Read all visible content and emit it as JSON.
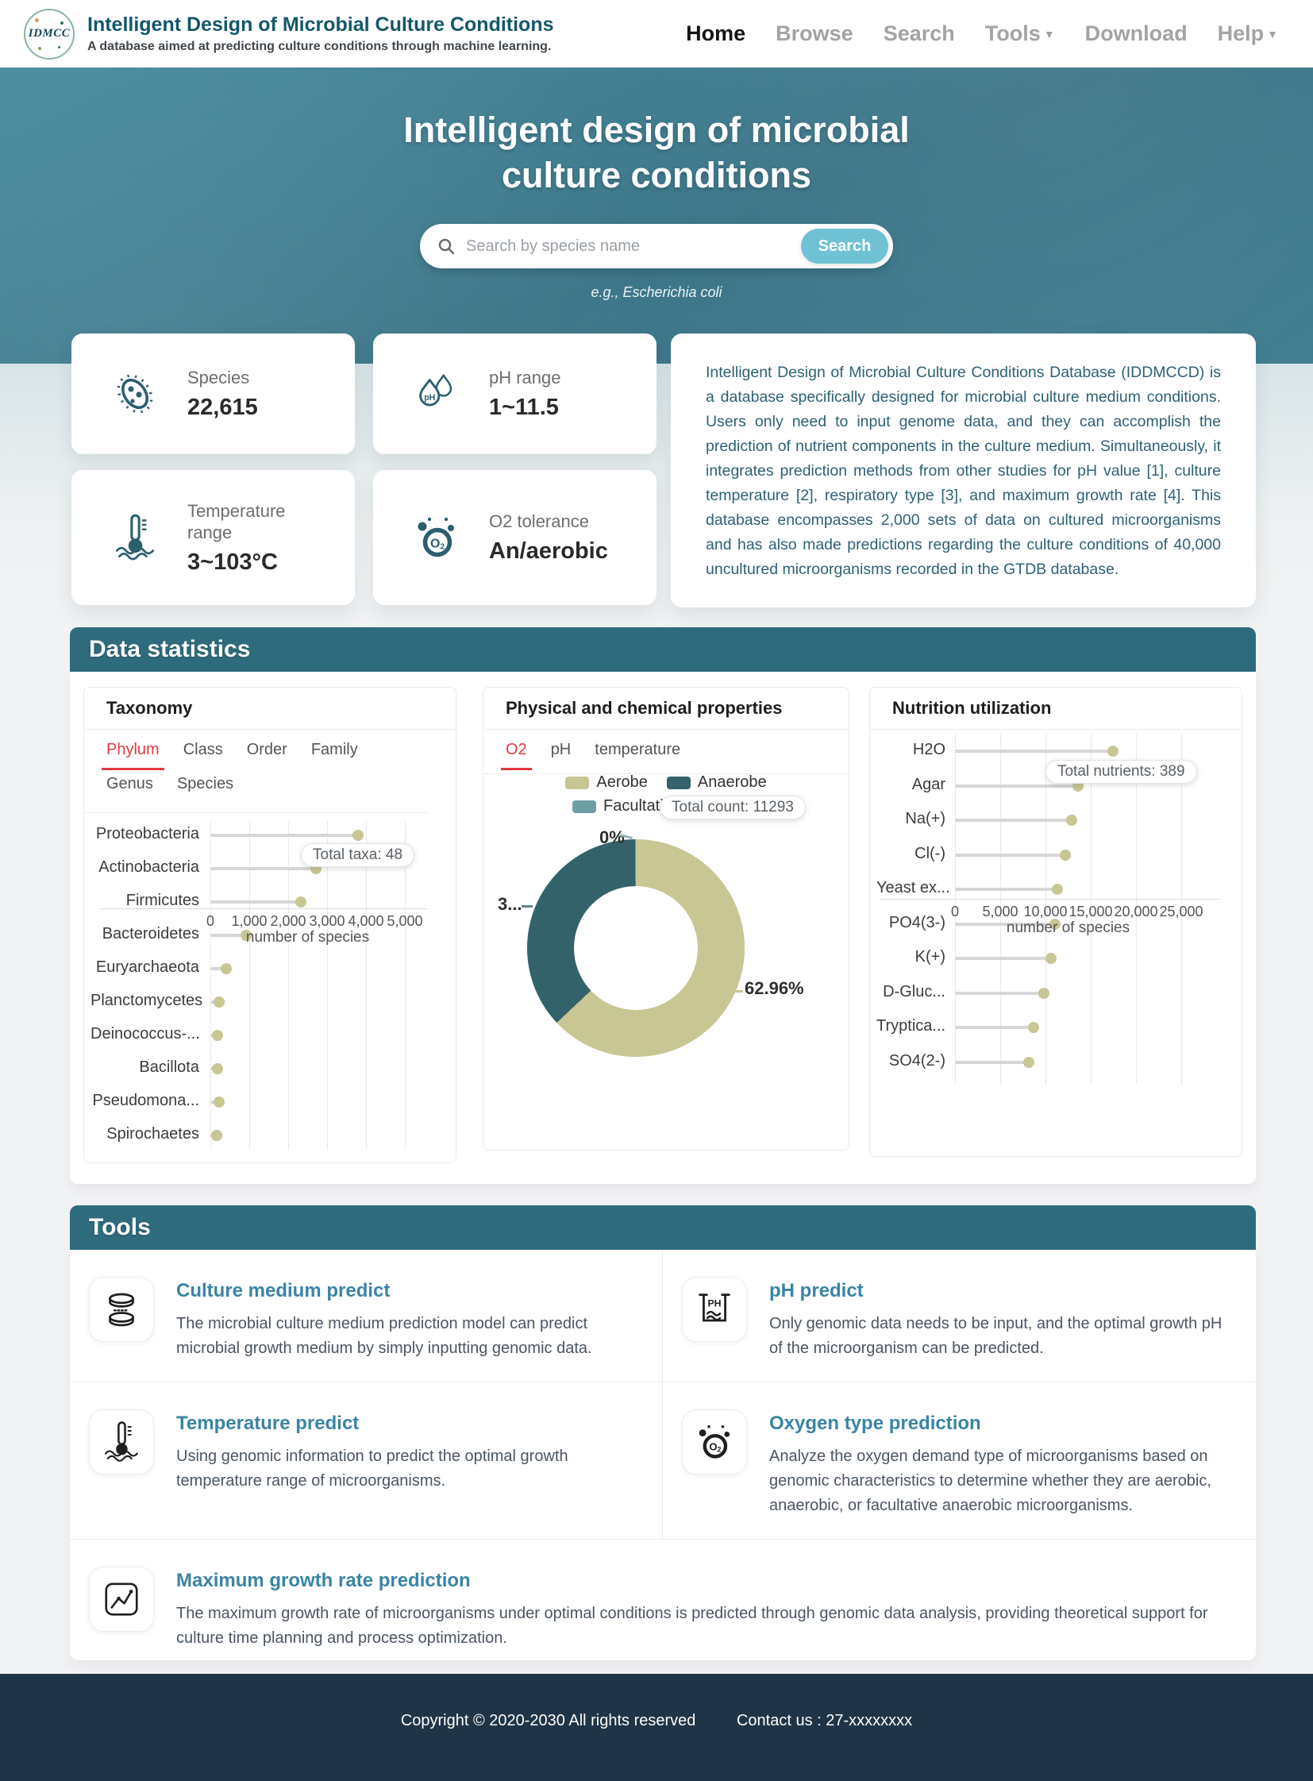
{
  "header": {
    "logo_text": "IDMCC",
    "title": "Intelligent Design of Microbial Culture Conditions",
    "subtitle": "A database aimed at predicting culture conditions through machine learning.",
    "nav": [
      {
        "label": "Home",
        "active": true,
        "dropdown": false
      },
      {
        "label": "Browse",
        "active": false,
        "dropdown": false
      },
      {
        "label": "Search",
        "active": false,
        "dropdown": false
      },
      {
        "label": "Tools",
        "active": false,
        "dropdown": true
      },
      {
        "label": "Download",
        "active": false,
        "dropdown": false
      },
      {
        "label": "Help",
        "active": false,
        "dropdown": true
      }
    ]
  },
  "hero": {
    "title_line1": "Intelligent design of microbial",
    "title_line2": "culture conditions",
    "search_placeholder": "Search by species name",
    "search_button": "Search",
    "example": "e.g., Escherichia coli"
  },
  "stats": [
    {
      "label": "Species",
      "value": "22,615"
    },
    {
      "label": "pH range",
      "value": "1~11.5"
    },
    {
      "label": "Temperature range",
      "value": "3~103°C"
    },
    {
      "label": "O2 tolerance",
      "value": "An/aerobic"
    }
  ],
  "about": "Intelligent Design of Microbial Culture Conditions Database (IDDMCCD) is a database specifically designed for microbial culture medium conditions. Users only need to input genome data, and they can accomplish the prediction of nutrient components in the culture medium. Simultaneously, it integrates prediction methods from other studies for pH value [1], culture temperature [2], respiratory type [3], and maximum growth rate [4]. This database encompasses 2,000 sets of data on cultured microorganisms and has also made predictions regarding the culture conditions of 40,000 uncultured microorganisms recorded in the GTDB database.",
  "sections": {
    "data_statistics_title": "Data statistics",
    "tools_title": "Tools"
  },
  "chart_data": [
    {
      "type": "bar",
      "style": "horizontal-lollipop",
      "panel_title": "Taxonomy",
      "tabs": [
        "Phylum",
        "Class",
        "Order",
        "Family",
        "Genus",
        "Species"
      ],
      "active_tab": "Phylum",
      "categories": [
        "Proteobacteria",
        "Actinobacteria",
        "Firmicutes",
        "Bacteroidetes",
        "Euryarchaeota",
        "Planctomycetes",
        "Deinococcus-...",
        "Bacillota",
        "Pseudomona...",
        "Spirochaetes"
      ],
      "values": [
        3800,
        2715,
        2330,
        920,
        410,
        225,
        185,
        185,
        225,
        165
      ],
      "xlabel": "number of species",
      "xlim": [
        0,
        5000
      ],
      "xticks": [
        "0",
        "1,000",
        "2,000",
        "3,000",
        "4,000",
        "5,000"
      ],
      "grid": true,
      "tooltip": "Total taxa: 48",
      "dot_color": "#c8c693"
    },
    {
      "type": "pie",
      "style": "donut",
      "panel_title": "Physical and chemical properties",
      "tabs": [
        "O2",
        "pH",
        "temperature"
      ],
      "active_tab": "O2",
      "legend_position": "top-center",
      "slices": [
        {
          "name": "Aerobe",
          "percent": 62.96,
          "color": "#c8c693",
          "label": "62.96%"
        },
        {
          "name": "Anaerobe",
          "percent": 36.9,
          "color": "#33626a",
          "label": "3..."
        },
        {
          "name": "Facultative",
          "percent": 0.14,
          "color": "#6f9fa4",
          "label": "0%"
        }
      ],
      "tooltip": "Total count: 11293"
    },
    {
      "type": "bar",
      "style": "horizontal-lollipop",
      "panel_title": "Nutrition utilization",
      "categories": [
        "H2O",
        "Agar",
        "Na(+)",
        "Cl(-)",
        "Yeast ex...",
        "PO4(3-)",
        "K(+)",
        "D-Gluc...",
        "Tryptica...",
        "SO4(2-)"
      ],
      "values": [
        17450,
        13600,
        12890,
        12190,
        11320,
        11050,
        10600,
        9820,
        8680,
        8160
      ],
      "xlabel": "number of species",
      "xlim": [
        0,
        25000
      ],
      "xticks": [
        "0",
        "5,000",
        "10,000",
        "15,000",
        "20,000",
        "25,000"
      ],
      "grid": true,
      "tooltip": "Total nutrients: 389",
      "dot_color": "#c8c693"
    }
  ],
  "tools": {
    "items": [
      {
        "title": "Culture medium predict",
        "desc": "The microbial culture medium prediction model can predict microbial growth medium by simply inputting genomic data."
      },
      {
        "title": "pH predict",
        "desc": "Only genomic data needs to be input, and the optimal growth pH of the microorganism can be predicted."
      },
      {
        "title": "Temperature predict",
        "desc": "Using genomic information to predict the optimal growth temperature range of microorganisms."
      },
      {
        "title": "Oxygen type prediction",
        "desc": "Analyze the oxygen demand type of microorganisms based on genomic characteristics to determine whether they are aerobic, anaerobic, or facultative anaerobic microorganisms."
      },
      {
        "title": "Maximum growth rate prediction",
        "desc": "The maximum growth rate of microorganisms under optimal conditions is predicted through genomic data analysis, providing theoretical support for culture time planning and process optimization."
      }
    ]
  },
  "footer": {
    "copyright": "Copyright © 2020-2030 All rights reserved",
    "contact": "Contact us : 27-xxxxxxxx"
  },
  "colors": {
    "accent_teal": "#2e6b7d",
    "hero_teal": "#3d7689",
    "tab_red": "#e23a3e",
    "khaki": "#c8c693",
    "anaerobe": "#33626a",
    "facultative": "#6f9fa4",
    "tool_title": "#3a84a6",
    "search_button": "#6fc2d4",
    "footer_bg": "#203447"
  }
}
